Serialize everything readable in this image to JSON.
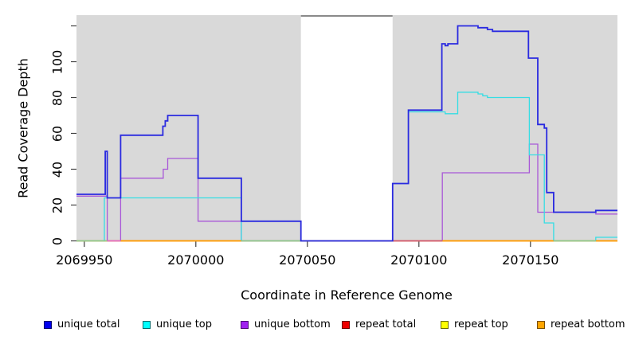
{
  "chart_data": {
    "type": "line",
    "subtype": "step-coverage",
    "xlabel": "Coordinate in Reference Genome",
    "ylabel": "Read Coverage Depth",
    "x_range": [
      2069946.5,
      2070189.0
    ],
    "y_range": [
      0,
      126
    ],
    "x_ticks": [
      {
        "v": 2069950,
        "label": "2069950"
      },
      {
        "v": 2070000,
        "label": "2070000"
      },
      {
        "v": 2070050,
        "label": "2070050"
      },
      {
        "v": 2070100,
        "label": "2070100"
      },
      {
        "v": 2070150,
        "label": "2070150"
      }
    ],
    "y_ticks": [
      {
        "v": 0,
        "label": "0"
      },
      {
        "v": 20,
        "label": "20"
      },
      {
        "v": 40,
        "label": "40"
      },
      {
        "v": 60,
        "label": "60"
      },
      {
        "v": 80,
        "label": "80"
      },
      {
        "v": 100,
        "label": "100"
      },
      {
        "v": 120,
        "label": ""
      }
    ],
    "plot_bg": "#d9d9d9",
    "grid": "off",
    "gap_band": {
      "x0": 2070047.1,
      "x1": 2070088.2,
      "color": "#ffffff",
      "top_line_color": "#8a8a8a"
    },
    "series": [
      {
        "name": "repeat top",
        "color": "#ffff00",
        "width": 1.3,
        "points": [
          [
            2069946.5,
            0
          ],
          [
            2070189.0,
            0
          ]
        ]
      },
      {
        "name": "repeat total",
        "color": "#ee0000",
        "width": 1.3,
        "points": [
          [
            2069946.5,
            0
          ],
          [
            2070189.0,
            0
          ]
        ]
      },
      {
        "name": "repeat bottom",
        "color": "#ff9d00",
        "width": 1.5,
        "points": [
          [
            2069946.5,
            0
          ],
          [
            2070189.0,
            0
          ]
        ]
      },
      {
        "name": "unique bottom",
        "color": "#a958d8",
        "width": 1.3,
        "points": [
          [
            2069946.5,
            25
          ],
          [
            2069960.3,
            0
          ],
          [
            2069966.3,
            35
          ],
          [
            2069985.4,
            40
          ],
          [
            2069987.4,
            46
          ],
          [
            2070001.0,
            11
          ],
          [
            2070020.4,
            0
          ],
          [
            2070110.5,
            38
          ],
          [
            2070149.5,
            54
          ],
          [
            2070153.3,
            16
          ],
          [
            2070179.3,
            15
          ],
          [
            2070189.0,
            15
          ]
        ]
      },
      {
        "name": "unique top",
        "color": "#35dde4",
        "width": 1.3,
        "points": [
          [
            2069946.5,
            0
          ],
          [
            2069959.0,
            24
          ],
          [
            2070020.4,
            0
          ],
          [
            2070088.2,
            32
          ],
          [
            2070095.3,
            72
          ],
          [
            2070111.8,
            71
          ],
          [
            2070117.4,
            83
          ],
          [
            2070126.5,
            82
          ],
          [
            2070128.6,
            81
          ],
          [
            2070130.7,
            80
          ],
          [
            2070149.5,
            48
          ],
          [
            2070156.2,
            10
          ],
          [
            2070160.4,
            0
          ],
          [
            2070179.3,
            2
          ],
          [
            2070189.0,
            2
          ]
        ]
      },
      {
        "name": "unique total",
        "color": "#2a2ae0",
        "width": 1.8,
        "points": [
          [
            2069946.5,
            26
          ],
          [
            2069959.4,
            50
          ],
          [
            2069960.3,
            24
          ],
          [
            2069966.3,
            59
          ],
          [
            2069985.2,
            64
          ],
          [
            2069986.3,
            67
          ],
          [
            2069987.4,
            70
          ],
          [
            2070001.0,
            35
          ],
          [
            2070020.4,
            11
          ],
          [
            2070047.1,
            0
          ],
          [
            2070088.2,
            32
          ],
          [
            2070095.3,
            73
          ],
          [
            2070110.3,
            110
          ],
          [
            2070111.8,
            109
          ],
          [
            2070113.0,
            110
          ],
          [
            2070117.4,
            120
          ],
          [
            2070126.5,
            119
          ],
          [
            2070130.7,
            118
          ],
          [
            2070133.0,
            117
          ],
          [
            2070149.1,
            102
          ],
          [
            2070153.3,
            65
          ],
          [
            2070156.2,
            63
          ],
          [
            2070157.3,
            27
          ],
          [
            2070160.4,
            16
          ],
          [
            2070179.3,
            17
          ],
          [
            2070189.0,
            17
          ]
        ]
      }
    ],
    "baseline_segments": [
      {
        "x0": 2069946.5,
        "x1": 2069960.3,
        "color": "#8ccc92"
      },
      {
        "x0": 2069960.3,
        "x1": 2069966.3,
        "color": "#e668cc"
      },
      {
        "x0": 2069966.3,
        "x1": 2070020.4,
        "color": "#ff9d00"
      },
      {
        "x0": 2070020.4,
        "x1": 2070047.1,
        "color": "#8ccc92"
      },
      {
        "x0": 2070088.2,
        "x1": 2070110.5,
        "color": "#d05575"
      },
      {
        "x0": 2070110.5,
        "x1": 2070160.4,
        "color": "#ff9d00"
      },
      {
        "x0": 2070160.4,
        "x1": 2070179.3,
        "color": "#8ccc92"
      },
      {
        "x0": 2070179.3,
        "x1": 2070189.0,
        "color": "#ff9d00"
      }
    ],
    "legend": [
      {
        "label": "unique total",
        "fill": "#0000ee",
        "border": "#00006e"
      },
      {
        "label": "unique top",
        "fill": "#00ffff",
        "border": "#006e6e"
      },
      {
        "label": "unique bottom",
        "fill": "#a020f0",
        "border": "#4e0a78"
      },
      {
        "label": "repeat total",
        "fill": "#ee0000",
        "border": "#6e0000"
      },
      {
        "label": "repeat top",
        "fill": "#ffff00",
        "border": "#6e6e00"
      },
      {
        "label": "repeat bottom",
        "fill": "#ffa500",
        "border": "#7a4e00"
      }
    ],
    "legend_position": "bottom"
  }
}
